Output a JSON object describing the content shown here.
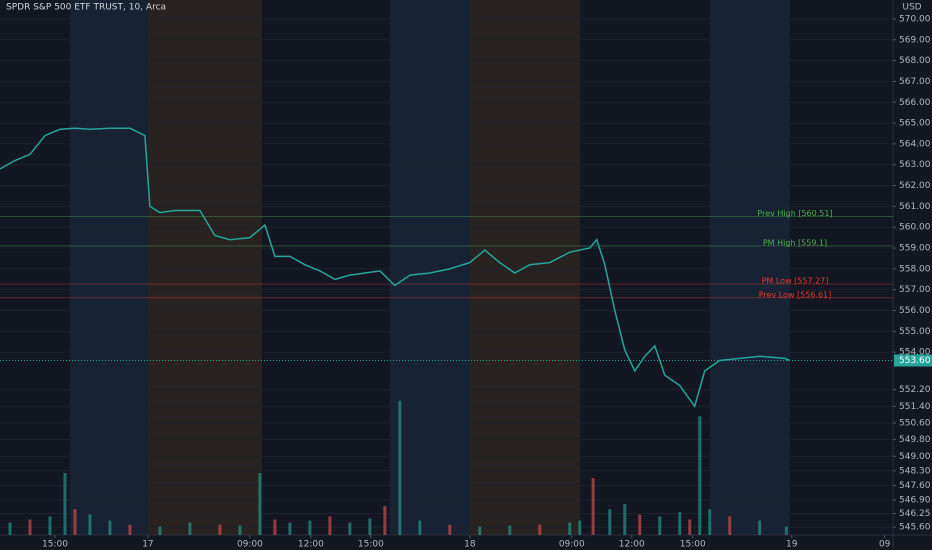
{
  "chart_data": {
    "type": "line",
    "title": "SPDR S&P 500 ETF TRUST, 10, Arca",
    "currency": "USD",
    "color": "#26a69a",
    "x": [
      0,
      4.5,
      9,
      13.5,
      18,
      22.5,
      27,
      33,
      39,
      43.5,
      45,
      48,
      52.5,
      60,
      64.5,
      69,
      75,
      79.5,
      82.5,
      87,
      91.5,
      96,
      100.5,
      105,
      109.5,
      114,
      118.5,
      123,
      129,
      135,
      141,
      145.5,
      150,
      154.5,
      159,
      165,
      171,
      177,
      179.1,
      181.5,
      184.5,
      187.5,
      190.5,
      193.5,
      196.5,
      199.5,
      204,
      208.5,
      211.5,
      216,
      222,
      228,
      235.5,
      237
    ],
    "values": [
      562.8,
      563.2,
      563.5,
      564.4,
      564.7,
      564.75,
      564.7,
      564.75,
      564.75,
      564.4,
      561.0,
      560.7,
      560.8,
      560.8,
      559.6,
      559.4,
      559.5,
      560.1,
      558.6,
      558.6,
      558.2,
      557.9,
      557.5,
      557.7,
      557.8,
      557.9,
      557.2,
      557.7,
      557.8,
      558.0,
      558.3,
      558.9,
      558.3,
      557.8,
      558.2,
      558.3,
      558.8,
      559.0,
      559.4,
      558.2,
      556.0,
      554.1,
      553.1,
      553.8,
      554.3,
      552.9,
      552.4,
      551.4,
      553.1,
      553.6,
      553.7,
      553.8,
      553.7,
      553.6
    ],
    "xlim": [
      0,
      268
    ],
    "ylim": [
      545.22,
      570.91
    ],
    "xticks": [
      {
        "value": 16.5,
        "label": "15:00"
      },
      {
        "value": 44.4,
        "label": "17"
      },
      {
        "value": 75,
        "label": "09:00"
      },
      {
        "value": 93.3,
        "label": "12:00"
      },
      {
        "value": 111.3,
        "label": "15:00"
      },
      {
        "value": 141,
        "label": "18"
      },
      {
        "value": 171.6,
        "label": "09:00"
      },
      {
        "value": 189.6,
        "label": "12:00"
      },
      {
        "value": 207.9,
        "label": "15:00"
      },
      {
        "value": 237.6,
        "label": "19"
      },
      {
        "value": 265.5,
        "label": "09"
      }
    ],
    "yticks": [
      {
        "value": 570,
        "label": "570.00"
      },
      {
        "value": 569,
        "label": "569.00"
      },
      {
        "value": 568,
        "label": "568.00"
      },
      {
        "value": 567,
        "label": "567.00"
      },
      {
        "value": 566,
        "label": "566.00"
      },
      {
        "value": 565,
        "label": "565.00"
      },
      {
        "value": 564,
        "label": "564.00"
      },
      {
        "value": 563,
        "label": "563.00"
      },
      {
        "value": 562,
        "label": "562.00"
      },
      {
        "value": 561,
        "label": "561.00"
      },
      {
        "value": 560,
        "label": "560.00"
      },
      {
        "value": 559,
        "label": "559.00"
      },
      {
        "value": 558,
        "label": "558.00"
      },
      {
        "value": 557,
        "label": "557.00"
      },
      {
        "value": 556,
        "label": "556.00"
      },
      {
        "value": 555,
        "label": "555.00"
      },
      {
        "value": 554,
        "label": "554.00"
      },
      {
        "value": 552.2,
        "label": "552.20"
      },
      {
        "value": 551.4,
        "label": "551.40"
      },
      {
        "value": 550.6,
        "label": "550.60"
      },
      {
        "value": 549.8,
        "label": "549.80"
      },
      {
        "value": 549,
        "label": "549.00"
      },
      {
        "value": 548.3,
        "label": "548.30"
      },
      {
        "value": 547.6,
        "label": "547.60"
      },
      {
        "value": 546.9,
        "label": "546.90"
      },
      {
        "value": 546.25,
        "label": "546.25"
      },
      {
        "value": 545.6,
        "label": "545.60"
      }
    ],
    "last_price": {
      "value": 553.6,
      "label": "553.60"
    },
    "levels": [
      {
        "label": "Prev High [560.51]",
        "value": 560.51,
        "color": "#4caf50"
      },
      {
        "label": "PM High [559.1]",
        "value": 559.1,
        "color": "#4caf50"
      },
      {
        "label": "PM Low [557.27]",
        "value": 557.27,
        "color": "#e53935"
      },
      {
        "label": "Prev Low [556.61]",
        "value": 556.61,
        "color": "#e53935"
      }
    ],
    "volume": {
      "x": [
        3,
        9,
        15,
        19.5,
        22.5,
        27,
        33,
        39,
        48,
        57,
        66,
        72,
        78,
        82.5,
        87,
        93,
        99,
        105,
        111,
        115.5,
        120,
        126,
        135,
        144,
        153,
        162,
        171,
        174,
        178,
        183,
        187.5,
        192,
        198,
        204,
        207,
        210,
        213,
        219,
        228,
        236
      ],
      "values": [
        12,
        15,
        18,
        60,
        25,
        20,
        14,
        10,
        8,
        12,
        10,
        9,
        60,
        15,
        12,
        14,
        18,
        12,
        16,
        28,
        130,
        14,
        10,
        8,
        9,
        10,
        12,
        14,
        55,
        25,
        30,
        20,
        18,
        22,
        15,
        115,
        25,
        18,
        14,
        8
      ],
      "ylim": [
        0,
        150
      ],
      "color": "#26a69a"
    }
  }
}
